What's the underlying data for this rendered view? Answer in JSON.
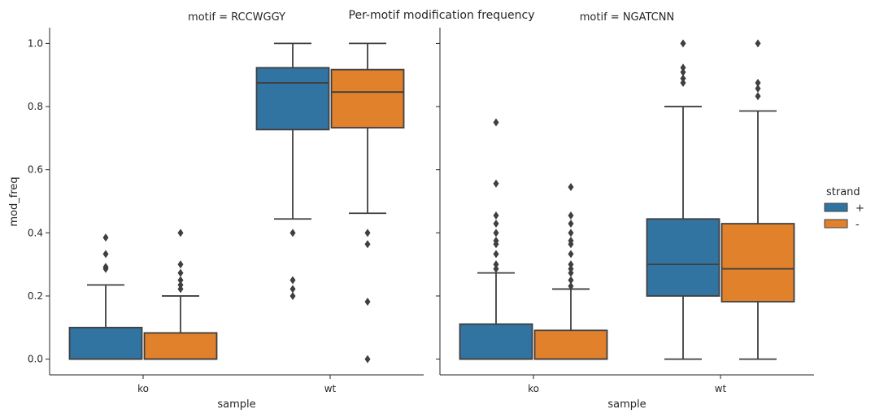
{
  "suptitle": "Per-motif modification frequency",
  "colors": {
    "+": "#3274a1",
    "-": "#e1812c",
    "line": "#3f3f3f",
    "axis": "#262626"
  },
  "legend": {
    "title": "strand",
    "entries": [
      "+",
      "-"
    ],
    "placement": "right"
  },
  "chart_data": [
    {
      "type": "box",
      "title": "motif = RCCWGGY",
      "xlabel": "sample",
      "ylabel": "mod_freq",
      "categories": [
        "ko",
        "wt"
      ],
      "hue": [
        "+",
        "-"
      ],
      "ylim": [
        -0.05,
        1.05
      ],
      "yticks": [
        "0.0",
        "0.2",
        "0.4",
        "0.6",
        "0.8",
        "1.0"
      ],
      "grid": false,
      "boxes": [
        {
          "category": "ko",
          "hue": "+",
          "whislo": 0.0,
          "q1": 0.0,
          "med": 0.0,
          "q3": 0.1,
          "whishi": 0.235,
          "fliers": [
            0.385,
            0.333,
            0.292,
            0.286
          ]
        },
        {
          "category": "ko",
          "hue": "-",
          "whislo": 0.0,
          "q1": 0.0,
          "med": 0.0,
          "q3": 0.083,
          "whishi": 0.2,
          "fliers": [
            0.4,
            0.3,
            0.273,
            0.25,
            0.235,
            0.222
          ]
        },
        {
          "category": "wt",
          "hue": "+",
          "whislo": 0.444,
          "q1": 0.727,
          "med": 0.875,
          "q3": 0.923,
          "whishi": 1.0,
          "fliers": [
            0.4,
            0.25,
            0.222,
            0.2
          ]
        },
        {
          "category": "wt",
          "hue": "-",
          "whislo": 0.462,
          "q1": 0.733,
          "med": 0.846,
          "q3": 0.917,
          "whishi": 1.0,
          "fliers": [
            0.4,
            0.364,
            0.182,
            0.0
          ]
        }
      ]
    },
    {
      "type": "box",
      "title": "motif = NGATCNN",
      "xlabel": "sample",
      "ylabel": "",
      "categories": [
        "ko",
        "wt"
      ],
      "hue": [
        "+",
        "-"
      ],
      "ylim": [
        -0.05,
        1.05
      ],
      "grid": false,
      "boxes": [
        {
          "category": "ko",
          "hue": "+",
          "whislo": 0.0,
          "q1": 0.0,
          "med": 0.0,
          "q3": 0.111,
          "whishi": 0.273,
          "fliers": [
            0.75,
            0.556,
            0.455,
            0.429,
            0.4,
            0.375,
            0.364,
            0.333,
            0.3,
            0.286
          ]
        },
        {
          "category": "ko",
          "hue": "-",
          "whislo": 0.0,
          "q1": 0.0,
          "med": 0.0,
          "q3": 0.091,
          "whishi": 0.222,
          "fliers": [
            0.545,
            0.455,
            0.429,
            0.4,
            0.375,
            0.364,
            0.333,
            0.3,
            0.286,
            0.273,
            0.25,
            0.231
          ]
        },
        {
          "category": "wt",
          "hue": "+",
          "whislo": 0.0,
          "q1": 0.2,
          "med": 0.3,
          "q3": 0.444,
          "whishi": 0.8,
          "fliers": [
            1.0,
            0.923,
            0.909,
            0.889,
            0.875
          ]
        },
        {
          "category": "wt",
          "hue": "-",
          "whislo": 0.0,
          "q1": 0.182,
          "med": 0.286,
          "q3": 0.429,
          "whishi": 0.786,
          "fliers": [
            1.0,
            0.875,
            0.857,
            0.833
          ]
        }
      ]
    }
  ]
}
